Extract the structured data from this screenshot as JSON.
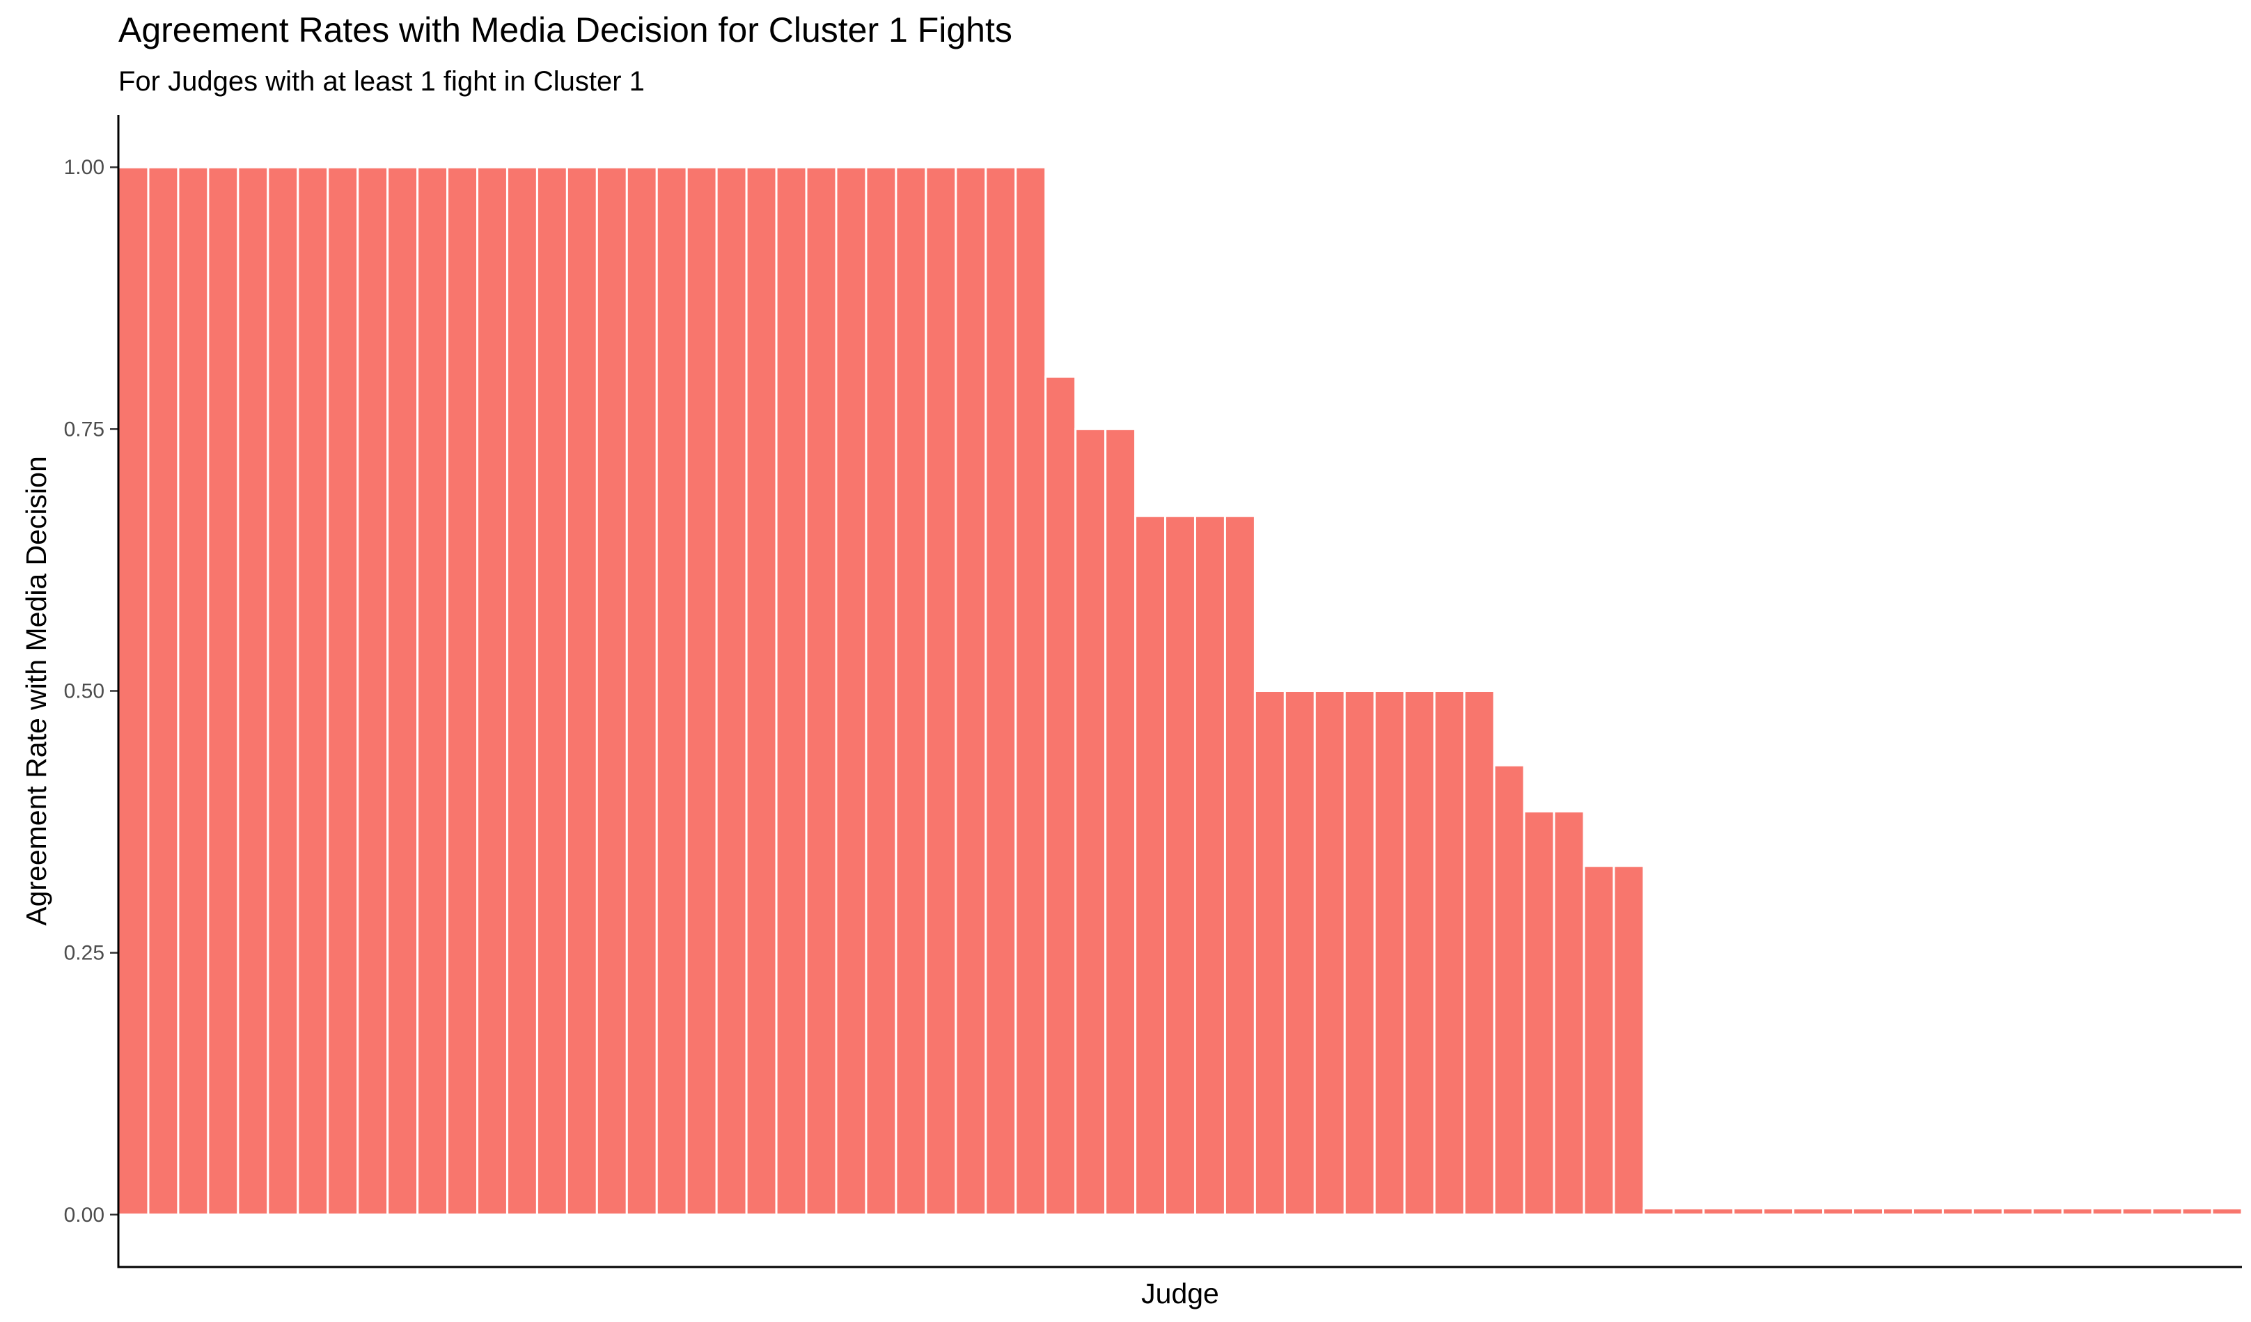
{
  "chart_data": {
    "type": "bar",
    "title": "Agreement Rates with Media Decision for Cluster 1 Fights",
    "subtitle": "For Judges with at least 1 fight in Cluster 1",
    "xlabel": "Judge",
    "ylabel": "Agreement Rate with Media Decision",
    "ylim": [
      -0.05,
      1.05
    ],
    "yticks": [
      0,
      0.25,
      0.5,
      0.75,
      1
    ],
    "ytick_labels": [
      "0.00",
      "0.25",
      "0.50",
      "0.75",
      "1.00"
    ],
    "x_tick_labels_shown": false,
    "grid": false,
    "legend": "none",
    "bar_color": "#F8766D",
    "values": [
      1,
      1,
      1,
      1,
      1,
      1,
      1,
      1,
      1,
      1,
      1,
      1,
      1,
      1,
      1,
      1,
      1,
      1,
      1,
      1,
      1,
      1,
      1,
      1,
      1,
      1,
      1,
      1,
      1,
      1,
      1,
      0.8,
      0.75,
      0.75,
      0.667,
      0.667,
      0.667,
      0.667,
      0.5,
      0.5,
      0.5,
      0.5,
      0.5,
      0.5,
      0.5,
      0.5,
      0.429,
      0.385,
      0.385,
      0.333,
      0.333,
      0,
      0,
      0,
      0,
      0,
      0,
      0,
      0,
      0,
      0,
      0,
      0,
      0,
      0,
      0,
      0,
      0,
      0,
      0,
      0
    ]
  }
}
